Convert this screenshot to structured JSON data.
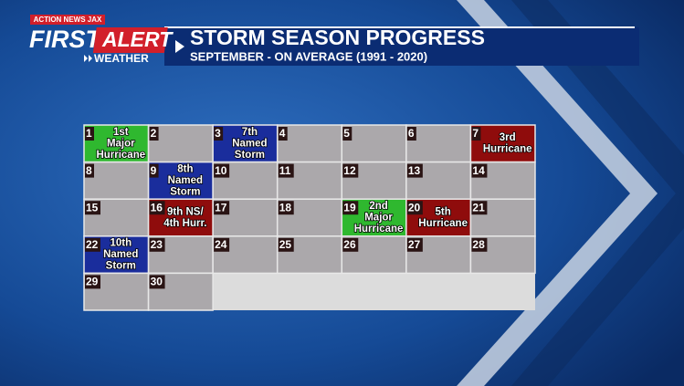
{
  "logo": {
    "station": "ACTION NEWS JAX",
    "first": "FIRST",
    "alert": "ALERT",
    "weather": "WEATHER"
  },
  "header": {
    "title": "STORM SEASON PROGRESS",
    "subtitle": "SEPTEMBER - ON AVERAGE (1991 - 2020)"
  },
  "calendar": {
    "days": [
      {
        "day": 1,
        "event": [
          "1st",
          "Major",
          "Hurricane"
        ],
        "color": "#2fb82f"
      },
      {
        "day": 2
      },
      {
        "day": 3,
        "event": [
          "7th",
          "Named",
          "Storm"
        ],
        "color": "#1a2d9c"
      },
      {
        "day": 4
      },
      {
        "day": 5
      },
      {
        "day": 6
      },
      {
        "day": 7,
        "event": [
          "3rd",
          "Hurricane"
        ],
        "color": "#8f0c0c"
      },
      {
        "day": 8
      },
      {
        "day": 9,
        "event": [
          "8th",
          "Named",
          "Storm"
        ],
        "color": "#1a2d9c"
      },
      {
        "day": 10
      },
      {
        "day": 11
      },
      {
        "day": 12
      },
      {
        "day": 13
      },
      {
        "day": 14
      },
      {
        "day": 15
      },
      {
        "day": 16,
        "event": [
          "9th NS/",
          "4th Hurr."
        ],
        "color": "#8f0c0c"
      },
      {
        "day": 17
      },
      {
        "day": 18
      },
      {
        "day": 19,
        "event": [
          "2nd",
          "Major",
          "Hurricane"
        ],
        "color": "#2fb82f"
      },
      {
        "day": 20,
        "event": [
          "5th",
          "Hurricane"
        ],
        "color": "#8f0c0c"
      },
      {
        "day": 21
      },
      {
        "day": 22,
        "event": [
          "10th",
          "Named",
          "Storm"
        ],
        "color": "#1a2d9c"
      },
      {
        "day": 23
      },
      {
        "day": 24
      },
      {
        "day": 25
      },
      {
        "day": 26
      },
      {
        "day": 27
      },
      {
        "day": 28
      },
      {
        "day": 29
      },
      {
        "day": 30
      }
    ]
  }
}
